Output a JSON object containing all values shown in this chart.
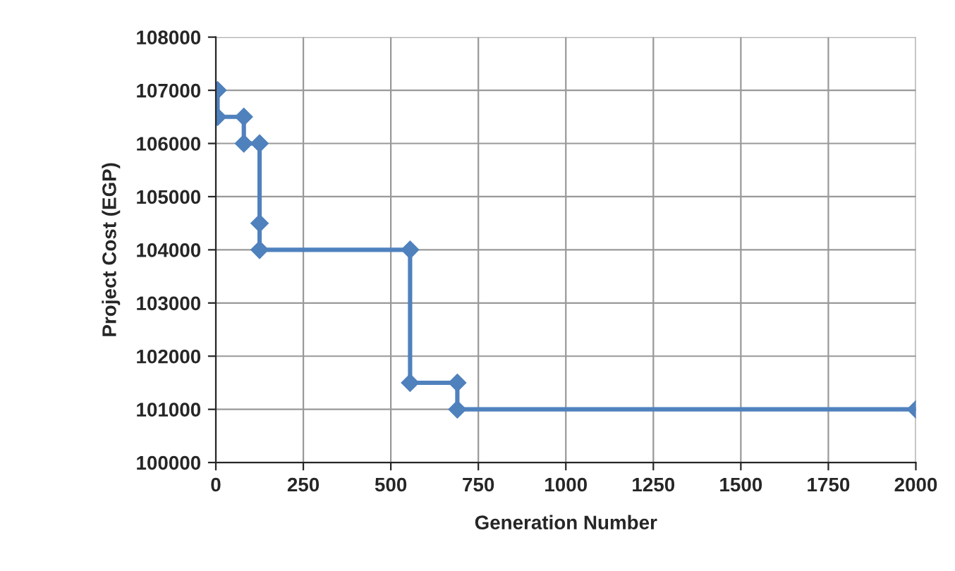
{
  "chart_data": {
    "type": "line",
    "xlabel": "Generation Number",
    "ylabel": "Project Cost (EGP)",
    "series": [
      {
        "color": "#4f81bd",
        "x": [
          5,
          5,
          80,
          80,
          125,
          125,
          125,
          555,
          555,
          690,
          690,
          2000
        ],
        "values": [
          107000,
          106500,
          106500,
          106000,
          106000,
          104500,
          104000,
          104000,
          101500,
          101500,
          101000,
          101000
        ]
      }
    ],
    "xlim": [
      0,
      2000
    ],
    "xticks": [
      0,
      250,
      500,
      750,
      1000,
      1250,
      1500,
      1750,
      2000
    ],
    "ylim": [
      100000,
      108000
    ],
    "yticks": [
      100000,
      101000,
      102000,
      103000,
      104000,
      105000,
      106000,
      107000,
      108000
    ],
    "grid": true,
    "marker": "diamond",
    "line_style": "solid"
  }
}
